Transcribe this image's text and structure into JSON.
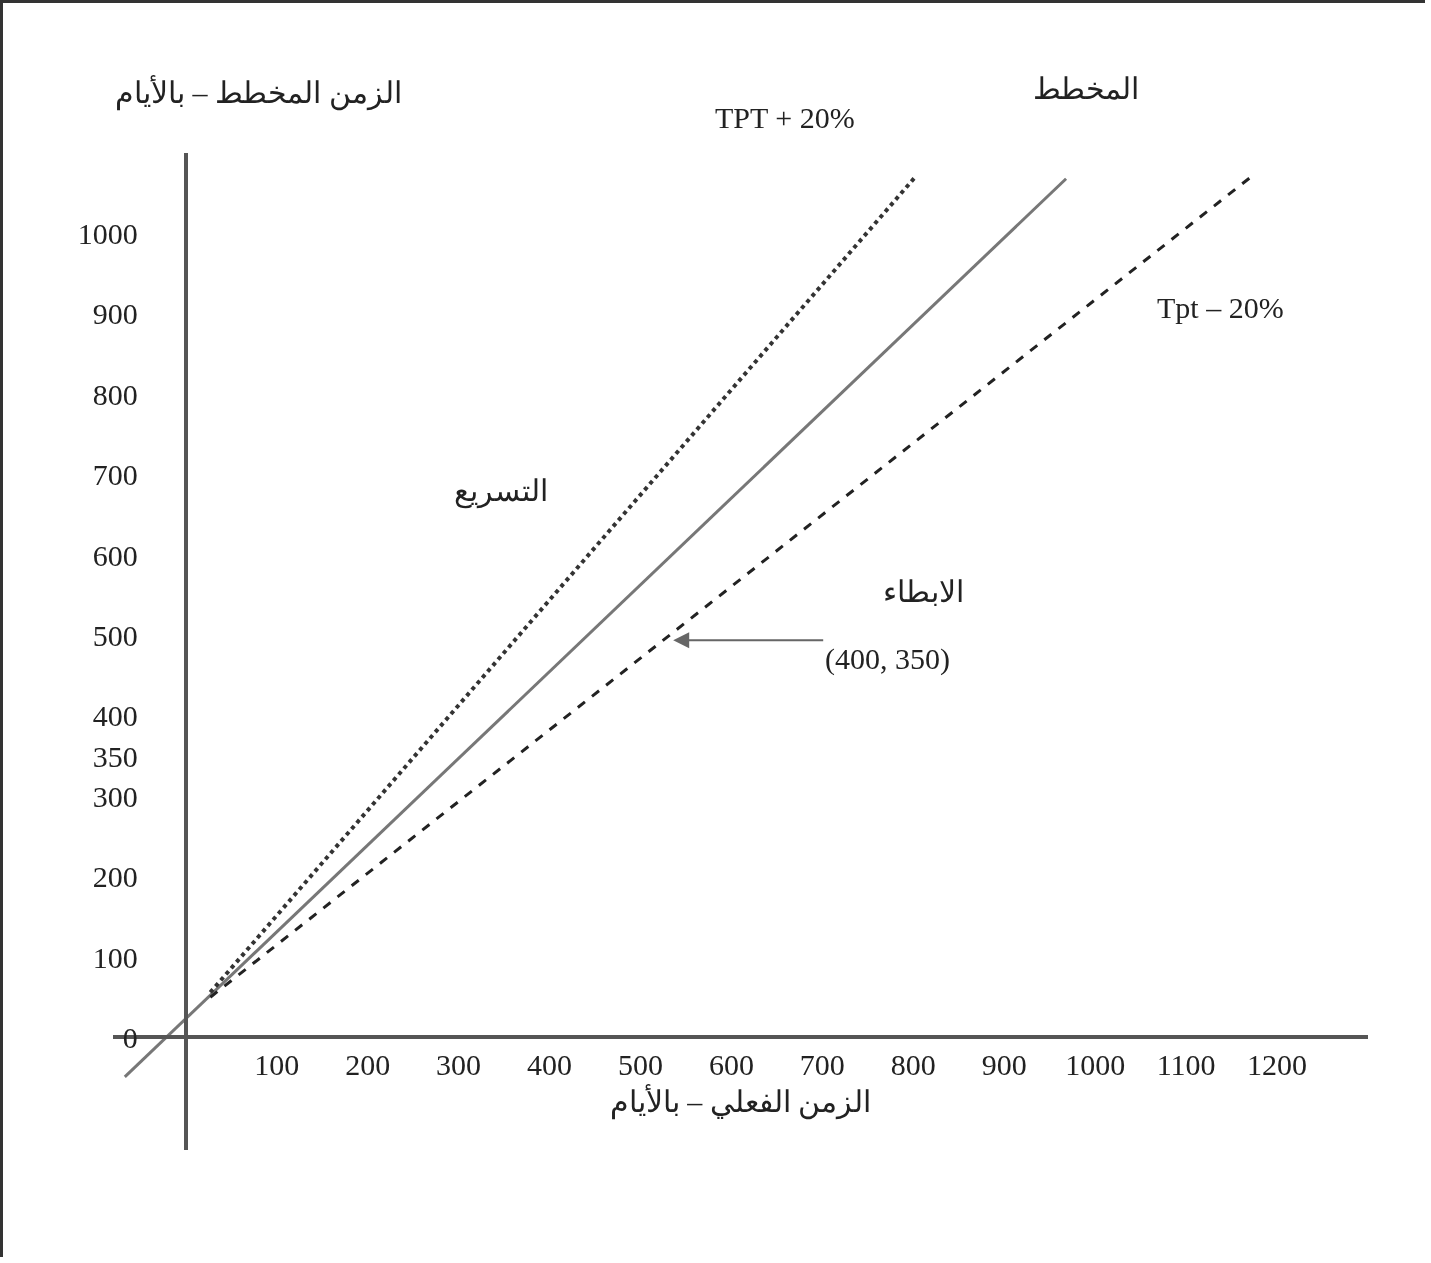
{
  "chart_data": {
    "type": "line",
    "xlabel": "الزمن الفعلي – بالأيام",
    "ylabel": "الزمن المخطط – بالأيام",
    "xlim": [
      -80,
      1300
    ],
    "ylim": [
      -140,
      1100
    ],
    "xticks": [
      100,
      200,
      300,
      400,
      500,
      600,
      700,
      800,
      900,
      1000,
      1100,
      1200
    ],
    "yticks": [
      1000,
      900,
      800,
      700,
      600,
      500,
      400,
      350,
      300,
      200,
      100,
      0
    ],
    "series": [
      {
        "name": "المخطط",
        "color": "#777777",
        "line_style": "solid",
        "x": [
          -67,
          968
        ],
        "values": [
          -49,
          1068
        ]
      },
      {
        "name": "TPT + 20%",
        "color": "#333333",
        "line_style": "dotted",
        "x": [
          27,
          802
        ],
        "values": [
          56,
          1070
        ]
      },
      {
        "name": "Tpt – 20%",
        "color": "#222222",
        "line_style": "dashed",
        "x": [
          27,
          1171
        ],
        "values": [
          50,
          1070
        ]
      }
    ],
    "annotations": [
      {
        "text": "(400, 350)",
        "x": 536,
        "y": 494
      },
      "التسريع",
      "الابطاء"
    ],
    "grid": false
  }
}
